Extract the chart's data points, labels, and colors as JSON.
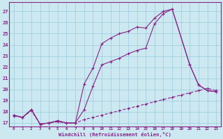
{
  "xlabel": "Windchill (Refroidissement éolien,°C)",
  "background_color": "#cce8f0",
  "grid_color": "#99ccdd",
  "line_color": "#882288",
  "xlim": [
    -0.5,
    23.5
  ],
  "ylim": [
    16.7,
    27.8
  ],
  "yticks": [
    17,
    18,
    19,
    20,
    21,
    22,
    23,
    24,
    25,
    26,
    27
  ],
  "xticks": [
    0,
    1,
    2,
    3,
    4,
    5,
    6,
    7,
    8,
    9,
    10,
    11,
    12,
    13,
    14,
    15,
    16,
    17,
    18,
    19,
    20,
    21,
    22,
    23
  ],
  "line1_x": [
    0,
    1,
    2,
    3,
    4,
    5,
    6,
    7,
    8,
    9,
    10,
    11,
    12,
    13,
    14,
    15,
    16,
    17,
    18,
    20,
    21,
    22,
    23
  ],
  "line1_y": [
    17.7,
    17.5,
    18.2,
    16.9,
    17.0,
    17.2,
    17.0,
    17.0,
    20.5,
    21.9,
    24.1,
    24.6,
    25.0,
    25.2,
    25.6,
    25.5,
    26.4,
    27.0,
    27.2,
    22.2,
    20.4,
    19.9,
    19.8
  ],
  "line2_x": [
    0,
    1,
    2,
    3,
    4,
    5,
    6,
    7,
    8,
    9,
    10,
    11,
    12,
    13,
    14,
    15,
    16,
    17,
    18,
    20,
    21,
    22,
    23
  ],
  "line2_y": [
    17.7,
    17.5,
    18.2,
    16.9,
    17.0,
    17.2,
    17.0,
    17.0,
    18.2,
    20.3,
    22.2,
    22.5,
    22.8,
    23.2,
    23.5,
    23.7,
    25.9,
    26.8,
    27.2,
    22.2,
    20.4,
    19.9,
    19.8
  ],
  "line3_x": [
    0,
    1,
    2,
    3,
    4,
    5,
    6,
    7,
    8,
    9,
    10,
    11,
    12,
    13,
    14,
    15,
    16,
    17,
    18,
    19,
    20,
    21,
    22,
    23
  ],
  "line3_y": [
    17.6,
    17.5,
    18.1,
    16.9,
    17.0,
    17.1,
    17.0,
    17.0,
    17.3,
    17.5,
    17.7,
    17.9,
    18.1,
    18.3,
    18.5,
    18.7,
    18.9,
    19.1,
    19.3,
    19.5,
    19.7,
    19.9,
    20.1,
    19.9
  ]
}
